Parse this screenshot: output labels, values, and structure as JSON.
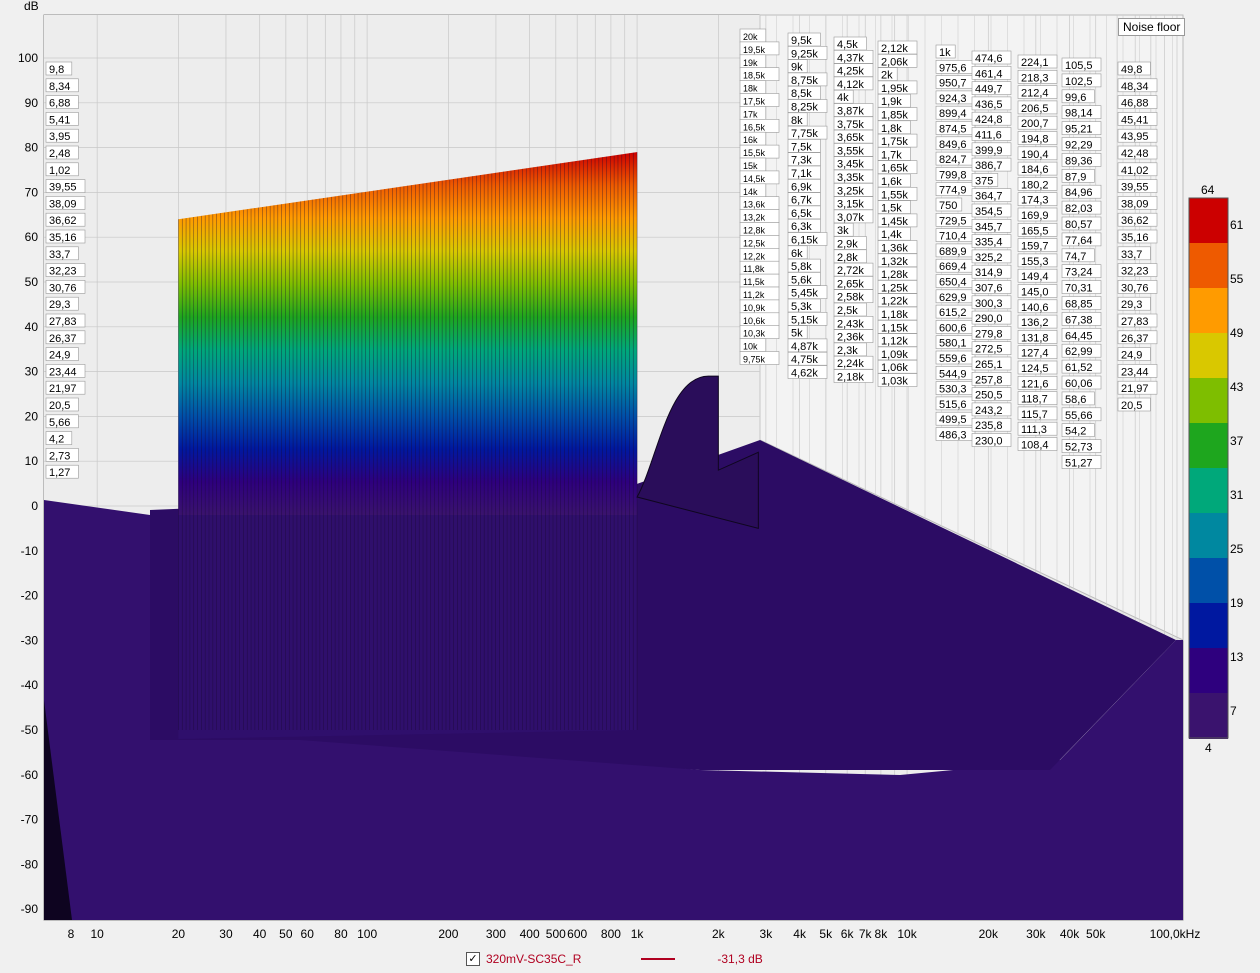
{
  "chart_data": {
    "type": "waterfall",
    "title": "",
    "ylabel": "dB",
    "ylim": [
      -95,
      105
    ],
    "yticks": [
      "100",
      "90",
      "80",
      "70",
      "60",
      "50",
      "40",
      "30",
      "20",
      "10",
      "0",
      "-10",
      "-20",
      "-30",
      "-40",
      "-50",
      "-60",
      "-70",
      "-80",
      "-90"
    ],
    "xscale": "log",
    "xlim_hz": [
      8,
      100000
    ],
    "xticks": [
      {
        "hz": 8,
        "label": "8"
      },
      {
        "hz": 10,
        "label": "10"
      },
      {
        "hz": 20,
        "label": "20"
      },
      {
        "hz": 30,
        "label": "30"
      },
      {
        "hz": 40,
        "label": "40"
      },
      {
        "hz": 50,
        "label": "50"
      },
      {
        "hz": 60,
        "label": "60"
      },
      {
        "hz": 80,
        "label": "80"
      },
      {
        "hz": 100,
        "label": "100"
      },
      {
        "hz": 200,
        "label": "200"
      },
      {
        "hz": 300,
        "label": "300"
      },
      {
        "hz": 400,
        "label": "400"
      },
      {
        "hz": 500,
        "label": "500"
      },
      {
        "hz": 600,
        "label": "600"
      },
      {
        "hz": 800,
        "label": "800"
      },
      {
        "hz": 1000,
        "label": "1k"
      },
      {
        "hz": 2000,
        "label": "2k"
      },
      {
        "hz": 3000,
        "label": "3k"
      },
      {
        "hz": 4000,
        "label": "4k"
      },
      {
        "hz": 5000,
        "label": "5k"
      },
      {
        "hz": 6000,
        "label": "6k"
      },
      {
        "hz": 7000,
        "label": "7k"
      },
      {
        "hz": 8000,
        "label": "8k"
      },
      {
        "hz": 10000,
        "label": "10k"
      },
      {
        "hz": 20000,
        "label": "20k"
      },
      {
        "hz": 30000,
        "label": "30k"
      },
      {
        "hz": 40000,
        "label": "40k"
      },
      {
        "hz": 50000,
        "label": "50k"
      },
      {
        "hz": 100000,
        "label": "100,0kHz"
      }
    ],
    "colorbar": {
      "min": 4,
      "max": 64,
      "ticks": [
        "64",
        "61",
        "55",
        "49",
        "43",
        "37",
        "31",
        "25",
        "19",
        "13",
        "7",
        "4"
      ],
      "colors": [
        "#cc0000",
        "#ee5a00",
        "#ff9b00",
        "#d9c800",
        "#7ebe00",
        "#1ea61e",
        "#00a87a",
        "#0088a0",
        "#0050a8",
        "#0018a0",
        "#2e007e",
        "#3a136e"
      ]
    },
    "annotation": "Noise floor",
    "sweep": {
      "start_hz": 20,
      "end_hz": 1000,
      "start_db": 64,
      "end_db": 79
    },
    "distortion_peak": {
      "start_hz": 1000,
      "end_hz": 2000,
      "peak_db": 29
    },
    "depth_label_columns": [
      [
        "9,8",
        "8,34",
        "6,88",
        "5,41",
        "3,95",
        "2,48",
        "1,02",
        "39,55",
        "38,09",
        "36,62",
        "35,16",
        "33,7",
        "32,23",
        "30,76",
        "29,3",
        "27,83",
        "26,37",
        "24,9",
        "23,44",
        "21,97",
        "20,5",
        "5,66",
        "4,2",
        "2,73",
        "1,27"
      ],
      [
        "20k",
        "19,5k",
        "19k",
        "18,5k",
        "18k",
        "17,5k",
        "17k",
        "16,5k",
        "16k",
        "15,5k",
        "15k",
        "14,5k",
        "14k",
        "13,6k",
        "13,2k",
        "12,8k",
        "12,5k",
        "12,2k",
        "11,8k",
        "11,5k",
        "11,2k",
        "10,9k",
        "10,6k",
        "10,3k",
        "10k",
        "9,75k"
      ],
      [
        "9,5k",
        "9,25k",
        "9k",
        "8,75k",
        "8,5k",
        "8,25k",
        "8k",
        "7,75k",
        "7,5k",
        "7,3k",
        "7,1k",
        "6,9k",
        "6,7k",
        "6,5k",
        "6,3k",
        "6,15k",
        "6k",
        "5,8k",
        "5,6k",
        "5,45k",
        "5,3k",
        "5,15k",
        "5k",
        "4,87k",
        "4,75k",
        "4,62k"
      ],
      [
        "4,5k",
        "4,37k",
        "4,25k",
        "4,12k",
        "4k",
        "3,87k",
        "3,75k",
        "3,65k",
        "3,55k",
        "3,45k",
        "3,35k",
        "3,25k",
        "3,15k",
        "3,07k",
        "3k",
        "2,9k",
        "2,8k",
        "2,72k",
        "2,65k",
        "2,58k",
        "2,5k",
        "2,43k",
        "2,36k",
        "2,3k",
        "2,24k",
        "2,18k"
      ],
      [
        "2,12k",
        "2,06k",
        "2k",
        "1,95k",
        "1,9k",
        "1,85k",
        "1,8k",
        "1,75k",
        "1,7k",
        "1,65k",
        "1,6k",
        "1,55k",
        "1,5k",
        "1,45k",
        "1,4k",
        "1,36k",
        "1,32k",
        "1,28k",
        "1,25k",
        "1,22k",
        "1,18k",
        "1,15k",
        "1,12k",
        "1,09k",
        "1,06k",
        "1,03k"
      ],
      [
        "1k",
        "975,6",
        "950,7",
        "924,3",
        "899,4",
        "874,5",
        "849,6",
        "824,7",
        "799,8",
        "774,9",
        "750",
        "729,5",
        "710,4",
        "689,9",
        "669,4",
        "650,4",
        "629,9",
        "615,2",
        "600,6",
        "580,1",
        "559,6",
        "544,9",
        "530,3",
        "515,6",
        "499,5",
        "486,3"
      ],
      [
        "474,6",
        "461,4",
        "449,7",
        "436,5",
        "424,8",
        "411,6",
        "399,9",
        "386,7",
        "375",
        "364,7",
        "354,5",
        "345,7",
        "335,4",
        "325,2",
        "314,9",
        "307,6",
        "300,3",
        "290,0",
        "279,8",
        "272,5",
        "265,1",
        "257,8",
        "250,5",
        "243,2",
        "235,8",
        "230,0"
      ],
      [
        "224,1",
        "218,3",
        "212,4",
        "206,5",
        "200,7",
        "194,8",
        "190,4",
        "184,6",
        "180,2",
        "174,3",
        "169,9",
        "165,5",
        "159,7",
        "155,3",
        "149,4",
        "145,0",
        "140,6",
        "136,2",
        "131,8",
        "127,4",
        "124,5",
        "121,6",
        "118,7",
        "115,7",
        "111,3",
        "108,4"
      ],
      [
        "105,5",
        "102,5",
        "99,6",
        "98,14",
        "95,21",
        "92,29",
        "89,36",
        "87,9",
        "84,96",
        "82,03",
        "80,57",
        "77,64",
        "74,7",
        "73,24",
        "70,31",
        "68,85",
        "67,38",
        "64,45",
        "62,99",
        "61,52",
        "60,06",
        "58,6",
        "55,66",
        "54,2",
        "52,73",
        "51,27"
      ],
      [
        "49,8",
        "48,34",
        "46,88",
        "45,41",
        "43,95",
        "42,48",
        "41,02",
        "39,55",
        "38,09",
        "36,62",
        "35,16",
        "33,7",
        "32,23",
        "30,76",
        "29,3",
        "27,83",
        "26,37",
        "24,9",
        "23,44",
        "21,97",
        "20,5"
      ]
    ]
  },
  "legend": {
    "checked_mark": "✓",
    "series_name": "320mV-SC35C_R",
    "value": "-31,3 dB",
    "line_color": "#b00020"
  }
}
